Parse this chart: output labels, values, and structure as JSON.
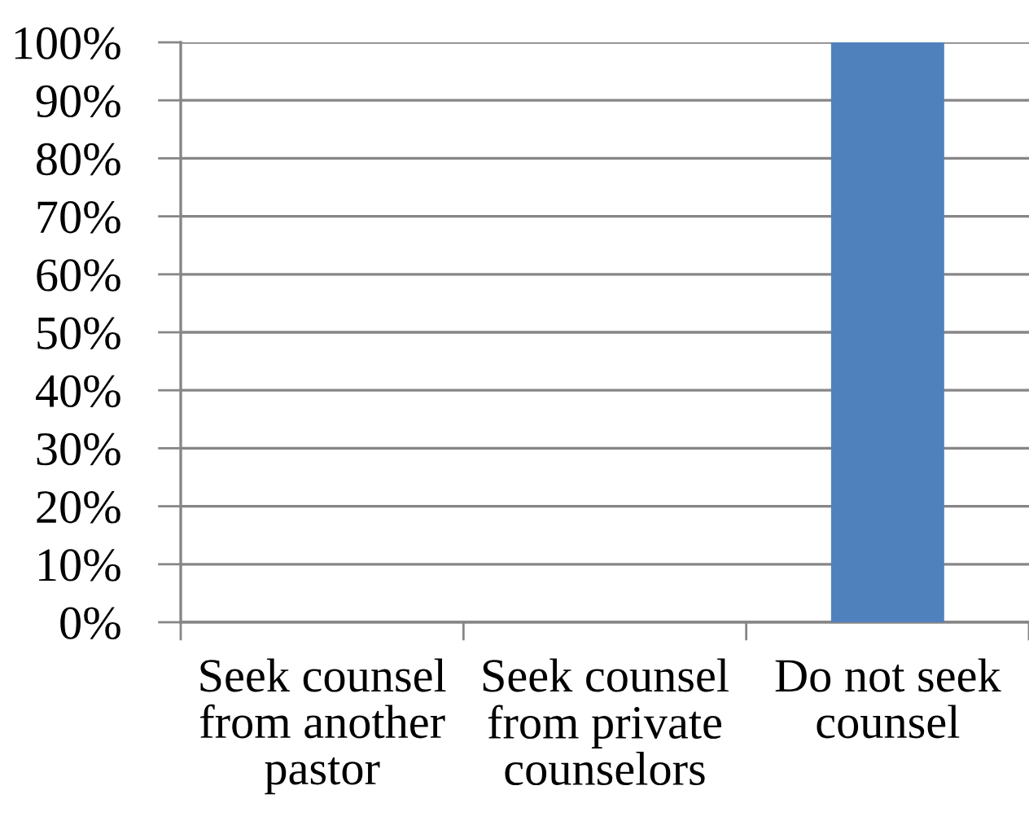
{
  "chart_data": {
    "type": "bar",
    "categories": [
      "Seek counsel\nfrom another\npastor",
      "Seek counsel\nfrom private\ncounselors",
      "Do not seek\ncounsel"
    ],
    "values": [
      0,
      0,
      100
    ],
    "color": "#4f81bd",
    "ylim": [
      0,
      100
    ],
    "yticks": [
      {
        "value": 0,
        "label": "0%"
      },
      {
        "value": 10,
        "label": "10%"
      },
      {
        "value": 20,
        "label": "20%"
      },
      {
        "value": 30,
        "label": "30%"
      },
      {
        "value": 40,
        "label": "40%"
      },
      {
        "value": 50,
        "label": "50%"
      },
      {
        "value": 60,
        "label": "60%"
      },
      {
        "value": 70,
        "label": "70%"
      },
      {
        "value": 80,
        "label": "80%"
      },
      {
        "value": 90,
        "label": "90%"
      },
      {
        "value": 100,
        "label": "100%"
      }
    ],
    "grid": "y"
  }
}
